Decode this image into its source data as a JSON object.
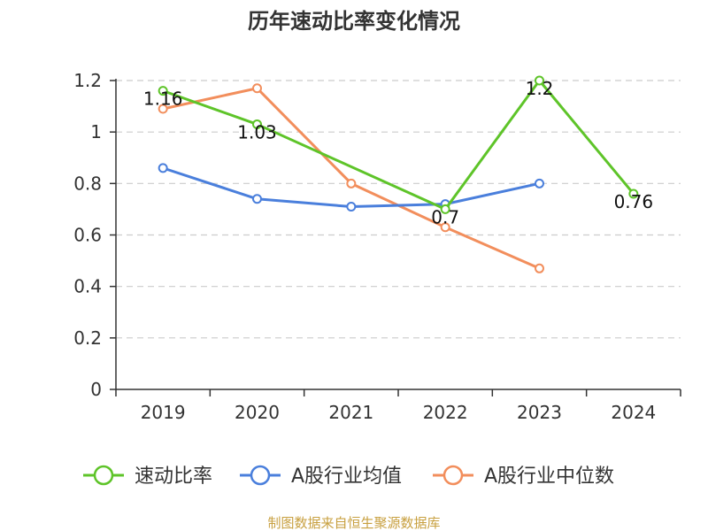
{
  "chart_data": {
    "type": "line",
    "title": "历年速动比率变化情况",
    "categories": [
      "2019",
      "2020",
      "2021",
      "2022",
      "2023",
      "2024"
    ],
    "ylim": [
      0,
      1.2
    ],
    "yticks": [
      "0",
      "0.2",
      "0.4",
      "0.6",
      "0.8",
      "1",
      "1.2"
    ],
    "grid": true,
    "legend_position": "bottom",
    "series": [
      {
        "name": "速动比率",
        "color": "#5ec429",
        "values": [
          1.16,
          1.03,
          null,
          0.7,
          1.2,
          0.76
        ],
        "labels": [
          "1.16",
          "1.03",
          "",
          "0.7",
          "1.2",
          "0.76"
        ]
      },
      {
        "name": "A股行业均值",
        "color": "#4a7fdc",
        "values": [
          0.86,
          0.74,
          0.71,
          0.72,
          0.8,
          null
        ]
      },
      {
        "name": "A股行业中位数",
        "color": "#f28e5c",
        "values": [
          1.09,
          1.17,
          0.8,
          0.63,
          0.47,
          null
        ]
      }
    ]
  },
  "footer": "制图数据来自恒生聚源数据库"
}
